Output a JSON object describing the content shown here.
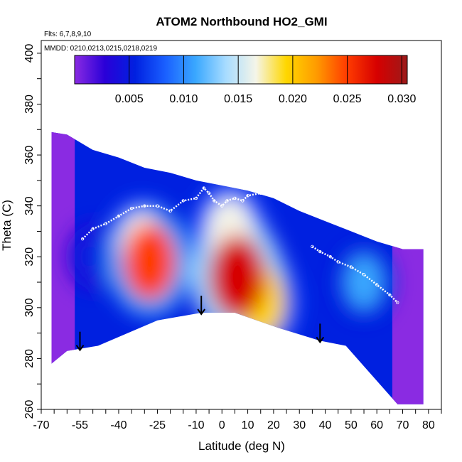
{
  "chart_data": {
    "type": "heatmap",
    "title": "ATOM2 Northbound HO2_GMI",
    "subtitle_lines": [
      "Flts: 6,7,8,9,10",
      "MMDD: 0210,0213,0215,0218,0219"
    ],
    "xlabel": "Latitude (deg N)",
    "ylabel": "Theta (C)",
    "xlim": [
      -70,
      85
    ],
    "ylim": [
      260,
      405
    ],
    "x_ticks": [
      -70,
      -55,
      -40,
      -25,
      -10,
      0,
      10,
      20,
      30,
      40,
      50,
      60,
      70,
      80
    ],
    "y_ticks": [
      260,
      280,
      300,
      320,
      340,
      360,
      380,
      400
    ],
    "colorbar": {
      "min": 0.0,
      "max": 0.0305,
      "ticks": [
        0.005,
        0.01,
        0.015,
        0.02,
        0.025,
        0.03
      ],
      "tick_labels": [
        "0.005",
        "0.010",
        "0.015",
        "0.020",
        "0.025",
        "0.030"
      ],
      "colors": [
        "#8a2be2",
        "#2a00d8",
        "#0020e0",
        "#1a60ff",
        "#3aa8ff",
        "#a8dcff",
        "#f5f5e8",
        "#ffd700",
        "#ff9b00",
        "#ff3c00",
        "#d60000",
        "#9c1a1a"
      ]
    },
    "domain_outline": {
      "top": [
        [
          -66,
          369
        ],
        [
          -60,
          368
        ],
        [
          -50,
          362
        ],
        [
          -40,
          359
        ],
        [
          -30,
          355
        ],
        [
          -20,
          353
        ],
        [
          -10,
          350
        ],
        [
          0,
          348
        ],
        [
          10,
          346
        ],
        [
          20,
          343
        ],
        [
          30,
          338
        ],
        [
          40,
          334
        ],
        [
          50,
          330
        ],
        [
          60,
          326
        ],
        [
          70,
          323
        ],
        [
          78,
          323
        ]
      ],
      "bottom": [
        [
          78,
          262
        ],
        [
          68,
          262
        ],
        [
          48,
          285
        ],
        [
          38,
          287
        ],
        [
          22,
          292
        ],
        [
          5,
          298
        ],
        [
          -8,
          298
        ],
        [
          -25,
          295
        ],
        [
          -48,
          285
        ],
        [
          -60,
          283
        ],
        [
          -66,
          278
        ]
      ]
    },
    "concentration_blobs": [
      {
        "lat": -28,
        "theta": 318,
        "value": 0.024
      },
      {
        "lat": 6,
        "theta": 312,
        "value": 0.028
      },
      {
        "lat": 15,
        "theta": 302,
        "value": 0.02
      },
      {
        "lat": -31,
        "theta": 325,
        "value": 0.016
      },
      {
        "lat": 3,
        "theta": 330,
        "value": 0.018
      },
      {
        "lat": 55,
        "theta": 310,
        "value": 0.01
      },
      {
        "lat": -50,
        "theta": 320,
        "value": 0.006
      }
    ],
    "flight_track": [
      [
        -54,
        327
      ],
      [
        -50,
        331
      ],
      [
        -45,
        333
      ],
      [
        -40,
        336
      ],
      [
        -35,
        339
      ],
      [
        -30,
        340
      ],
      [
        -25,
        340
      ],
      [
        -20,
        338
      ],
      [
        -15,
        342
      ],
      [
        -10,
        343
      ],
      [
        -7,
        347
      ],
      [
        -5,
        345
      ],
      [
        -3,
        342
      ],
      [
        0,
        340
      ],
      [
        2,
        342
      ],
      [
        5,
        343
      ],
      [
        8,
        342
      ],
      [
        10,
        344
      ],
      [
        15,
        345
      ],
      [
        20,
        344
      ],
      [
        35,
        324
      ],
      [
        38,
        322
      ],
      [
        42,
        320
      ],
      [
        45,
        318
      ],
      [
        50,
        316
      ],
      [
        55,
        313
      ],
      [
        60,
        309
      ],
      [
        65,
        305
      ],
      [
        68,
        302
      ]
    ],
    "arrows_at_lat": [
      -55,
      -8,
      38
    ]
  }
}
